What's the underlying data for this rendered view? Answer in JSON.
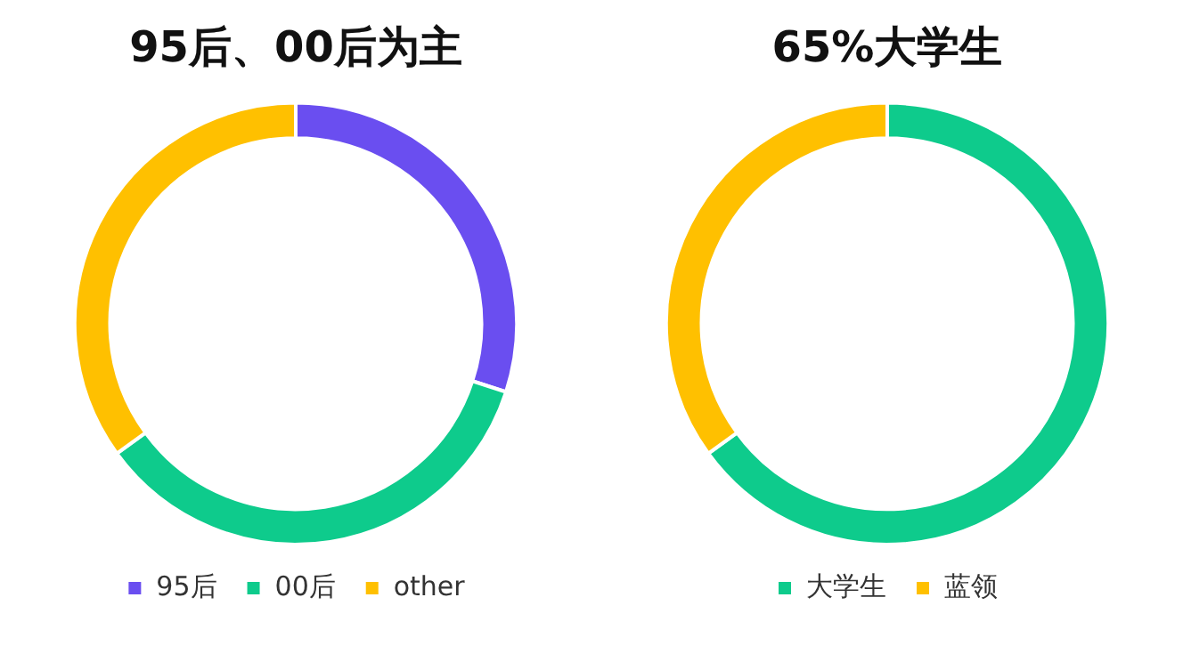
{
  "chart_data": [
    {
      "type": "donut",
      "title": "95后、00后为主",
      "categories": [
        "95后",
        "00后",
        "other"
      ],
      "values": [
        30,
        35,
        35
      ],
      "colors": [
        "#6a4ef0",
        "#0ecb8c",
        "#ffc000"
      ],
      "legend": "bottom"
    },
    {
      "type": "donut",
      "title": "65%大学生",
      "categories": [
        "大学生",
        "蓝领"
      ],
      "values": [
        65,
        35
      ],
      "colors": [
        "#0ecb8c",
        "#ffc000"
      ],
      "legend": "bottom"
    }
  ]
}
